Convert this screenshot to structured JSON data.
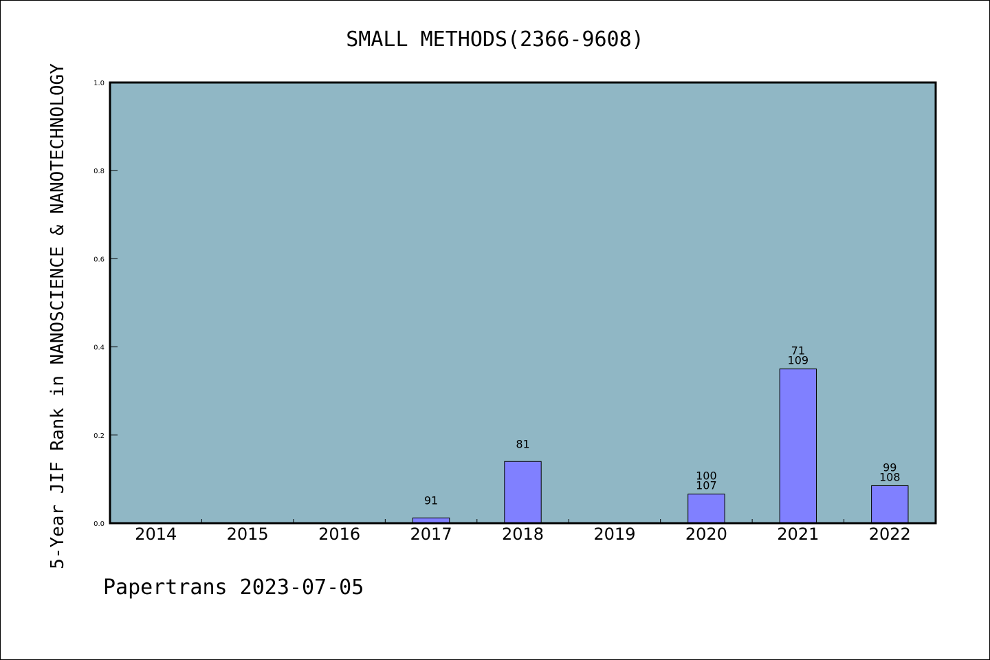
{
  "chart_data": {
    "type": "bar",
    "title": "SMALL METHODS(2366-9608)",
    "ylabel": "5-Year JIF Rank in NANOSCIENCE & NANOTECHNOLOGY",
    "xlabel": "",
    "categories": [
      "2014",
      "2015",
      "2016",
      "2017",
      "2018",
      "2019",
      "2020",
      "2021",
      "2022"
    ],
    "values": [
      null,
      null,
      null,
      0.012,
      0.14,
      null,
      0.066,
      0.35,
      0.085
    ],
    "bar_labels": [
      [],
      [],
      [],
      [
        "91"
      ],
      [
        "81"
      ],
      [],
      [
        "100",
        "107"
      ],
      [
        "71",
        "109"
      ],
      [
        "99",
        "108"
      ]
    ],
    "ylim": [
      0,
      1.0
    ],
    "yticks": [
      "0.0",
      "0.2",
      "0.4",
      "0.6",
      "0.8",
      "1.0"
    ],
    "grid": false,
    "legend": "none",
    "footer": "Papertrans 2023-07-05",
    "colors": {
      "plot_background": "#90b7c5",
      "bar_fill": "#8080ff",
      "bar_stroke": "#000000",
      "axis": "#000000",
      "text": "#000000",
      "page_background": "#ffffff"
    }
  }
}
